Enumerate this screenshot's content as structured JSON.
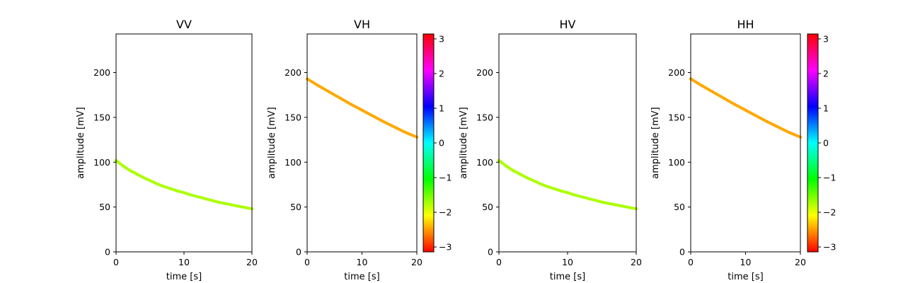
{
  "chart_data": [
    {
      "type": "scatter",
      "title": "VV",
      "xlabel": "time [s]",
      "ylabel": "amplitude [mV]",
      "xlim": [
        0,
        20
      ],
      "ylim": [
        0,
        243
      ],
      "xticks": [
        "0",
        "10",
        "20"
      ],
      "yticks": [
        "0",
        "50",
        "100",
        "150",
        "200"
      ],
      "x": [
        0,
        1,
        2,
        3,
        4,
        5,
        6,
        7,
        8,
        9,
        10,
        11,
        12,
        13,
        14,
        15,
        16,
        17,
        18,
        19,
        20
      ],
      "y": [
        102,
        96,
        91,
        87,
        83,
        79.5,
        76,
        73,
        70.5,
        68,
        66,
        63.5,
        61.5,
        59.5,
        57.5,
        55.5,
        54,
        52.5,
        51,
        49.5,
        48
      ],
      "phase": -1.75,
      "colorbar": false
    },
    {
      "type": "scatter",
      "title": "VH",
      "xlabel": "time [s]",
      "ylabel": "amplitude [mV]",
      "xlim": [
        0,
        20
      ],
      "ylim": [
        0,
        243
      ],
      "xticks": [
        "0",
        "10",
        "20"
      ],
      "yticks": [
        "0",
        "50",
        "100",
        "150",
        "200"
      ],
      "x": [
        0,
        2,
        4,
        6,
        8,
        10,
        12,
        14,
        16,
        18,
        20
      ],
      "y": [
        193,
        185.5,
        178.5,
        171.5,
        164.5,
        158,
        151.5,
        145,
        139,
        133,
        128
      ],
      "phase": -2.45,
      "colorbar": true
    },
    {
      "type": "scatter",
      "title": "HV",
      "xlabel": "time [s]",
      "ylabel": "amplitude [mV]",
      "xlim": [
        0,
        20
      ],
      "ylim": [
        0,
        243
      ],
      "xticks": [
        "0",
        "10",
        "20"
      ],
      "yticks": [
        "0",
        "50",
        "100",
        "150",
        "200"
      ],
      "x": [
        0,
        1,
        2,
        3,
        4,
        5,
        6,
        7,
        8,
        9,
        10,
        11,
        12,
        13,
        14,
        15,
        16,
        17,
        18,
        19,
        20
      ],
      "y": [
        102,
        96,
        91,
        87,
        83,
        79.5,
        76,
        73,
        70.5,
        68,
        66,
        63.5,
        61.5,
        59.5,
        57.5,
        55.5,
        54,
        52.5,
        51,
        49.5,
        48
      ],
      "phase": -1.75,
      "colorbar": false
    },
    {
      "type": "scatter",
      "title": "HH",
      "xlabel": "time [s]",
      "ylabel": "amplitude [mV]",
      "xlim": [
        0,
        20
      ],
      "ylim": [
        0,
        243
      ],
      "xticks": [
        "0",
        "10",
        "20"
      ],
      "yticks": [
        "0",
        "50",
        "100",
        "150",
        "200"
      ],
      "x": [
        0,
        2,
        4,
        6,
        8,
        10,
        12,
        14,
        16,
        18,
        20
      ],
      "y": [
        193,
        185.5,
        178.5,
        171.5,
        164.5,
        158,
        151.5,
        145,
        139,
        133,
        128
      ],
      "phase": -2.45,
      "colorbar": true
    }
  ],
  "colorbar": {
    "colormap": "hsv",
    "range": [
      -3.1416,
      3.1416
    ],
    "ticks": [
      "−3",
      "−2",
      "−1",
      "0",
      "1",
      "2",
      "3"
    ],
    "tick_values": [
      -3,
      -2,
      -1,
      0,
      1,
      2,
      3
    ]
  }
}
